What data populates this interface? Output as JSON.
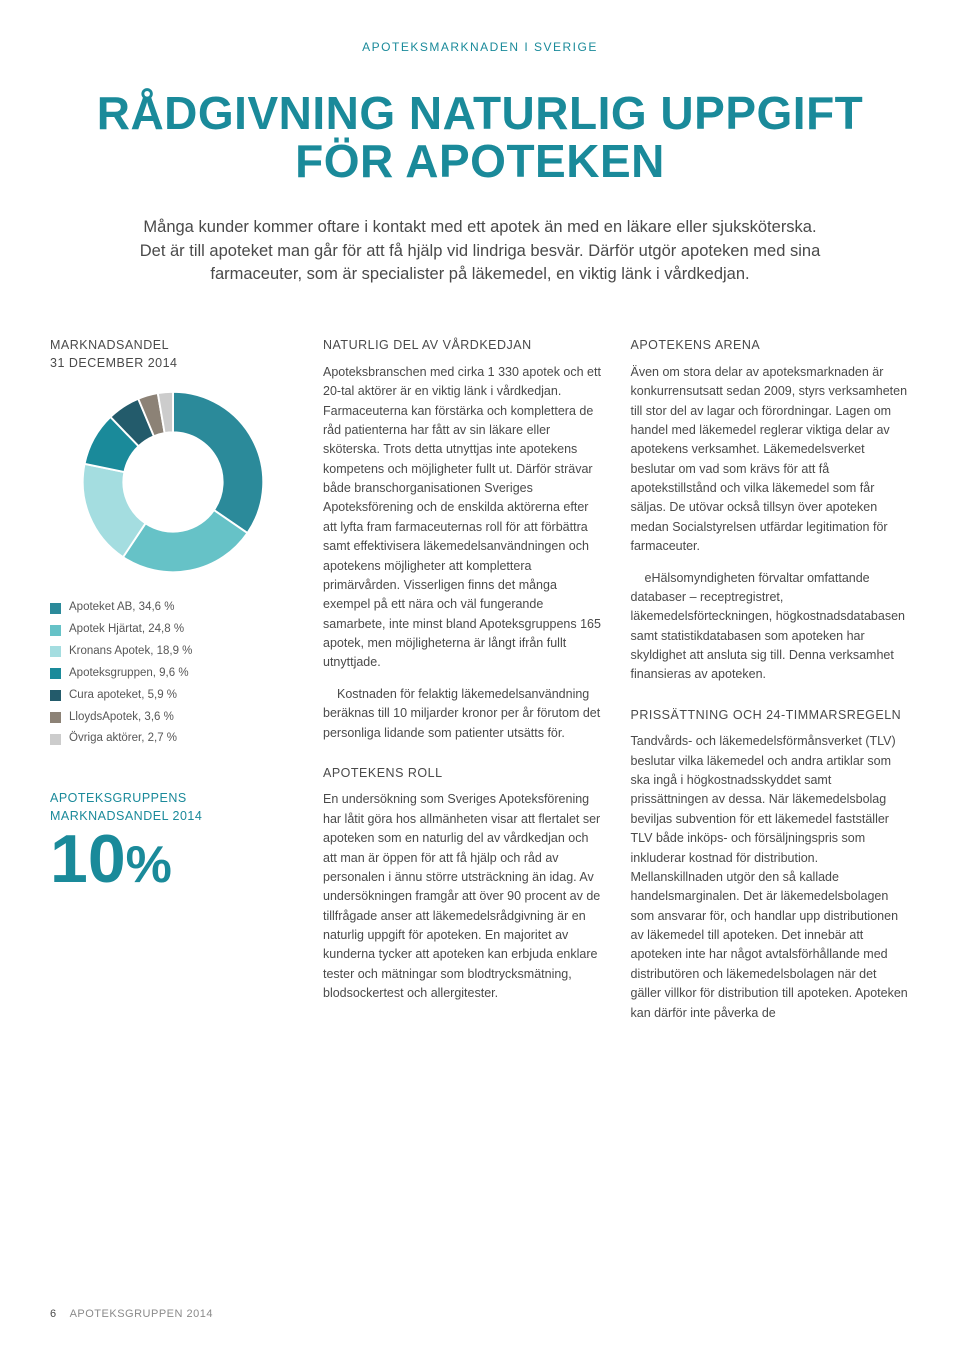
{
  "header_label": "APOTEKSMARKNADEN I SVERIGE",
  "main_title": "RÅDGIVNING NATURLIG UPPGIFT FÖR APOTEKEN",
  "intro": "Många kunder kommer oftare i kontakt med ett apotek än med en läkare eller sjuksköterska. Det är till apoteket man går för att få hjälp vid lindriga besvär. Därför utgör apoteken med sina farmaceuter, som är specialister på läkemedel, en viktig länk i vårdkedjan.",
  "chart": {
    "title": "MARKNADSANDEL\n31 DECEMBER 2014",
    "type": "donut",
    "inner_ratio": 0.55,
    "background_color": "#ffffff",
    "slices": [
      {
        "label": "Apoteket AB, 34,6 %",
        "value": 34.6,
        "color": "#2b8a9a"
      },
      {
        "label": "Apotek Hjärtat, 24,8 %",
        "value": 24.8,
        "color": "#66c2c7"
      },
      {
        "label": "Kronans Apotek, 18,9 %",
        "value": 18.9,
        "color": "#a4dde0"
      },
      {
        "label": "Apoteksgruppen, 9,6 %",
        "value": 9.6,
        "color": "#1a8a9a"
      },
      {
        "label": "Cura apoteket, 5,9 %",
        "value": 5.9,
        "color": "#235b6b"
      },
      {
        "label": "LloydsApotek, 3,6 %",
        "value": 3.6,
        "color": "#8c8276"
      },
      {
        "label": "Övriga aktörer, 2,7 %",
        "value": 2.7,
        "color": "#cccccc"
      }
    ]
  },
  "stat": {
    "label": "APOTEKSGRUPPENS MARKNADSANDEL 2014",
    "value": "10",
    "unit": "%",
    "color": "#1a8a9a",
    "value_fontsize": 68
  },
  "col2": {
    "h1": "NATURLIG DEL AV VÅRDKEDJAN",
    "p1": "Apoteksbranschen med cirka 1 330 apotek och ett 20-tal aktörer är en viktig länk i vårdkedjan. Farmaceuterna kan förstärka och komplettera de råd patienterna har fått av sin läkare eller sköterska. Trots detta utnyttjas inte apotekens kompetens och möjligheter fullt ut. Därför strävar både branschorganisationen Sveriges Apoteksförening och de enskilda aktörerna efter att lyfta fram farmaceuternas roll för att förbättra samt effektivisera läkemedelsanvändningen och apotekens möjligheter att komplettera primärvården. Visserligen finns det många exempel på ett nära och väl fungerande samarbete, inte minst bland Apoteksgruppens 165 apotek, men möjligheterna är långt ifrån fullt utnyttjade.",
    "p1b": "Kostnaden för felaktig läkemedelsanvändning beräknas till 10 miljarder kronor per år förutom det personliga lidande som patienter utsätts för.",
    "h2": "APOTEKENS ROLL",
    "p2": "En undersökning som Sveriges Apoteksförening har låtit göra hos allmänheten visar att flertalet ser apoteken som en naturlig del av vårdkedjan och att man är öppen för att få hjälp och råd av personalen i ännu större utsträckning än idag. Av undersökningen framgår att över 90 procent av de tillfrågade anser att läkemedelsrådgivning är en naturlig uppgift för apoteken. En majoritet av kunderna tycker att apoteken kan erbjuda enklare tester och mätningar som blodtrycksmätning, blodsockertest och allergitester."
  },
  "col3": {
    "h1": "APOTEKENS ARENA",
    "p1": "Även om stora delar av apoteksmarknaden är konkurrensutsatt sedan 2009, styrs verksamheten till stor del av lagar och förordningar. Lagen om handel med läkemedel reglerar viktiga delar av apotekens verksamhet. Läkemedelsverket beslutar om vad som krävs för att få apotekstillstånd och vilka läkemedel som får säljas. De utövar också tillsyn över apoteken medan Socialstyrelsen utfärdar legitimation för farmaceuter.",
    "p1b": "eHälsomyndigheten förvaltar omfattande databaser – receptregistret, läkemedelsförteckningen, högkostnadsdatabasen samt statistikdatabasen som apoteken har skyldighet att ansluta sig till. Denna verksamhet finansieras av apoteken.",
    "h2": "PRISSÄTTNING OCH 24-TIMMARS­REGELN",
    "p2": "Tandvårds- och läkemedelsförmånsverket (TLV) beslutar vilka läkemedel och andra artiklar som ska ingå i högkostnadsskyddet samt prissättningen av dessa. När läkemedelsbolag beviljas subvention för ett läkemedel fastställer TLV både inköps- och försäljningspris som inkluderar kostnad för distribution. Mellanskillnaden utgör den så kallade handelsmarginalen. Det är läkemedelsbolagen som ansvarar för, och handlar upp distributionen av läkemedel till apoteken. Det innebär att apoteken inte har något avtalsförhållande med distributören och läkemedelsbolagen när det gäller villkor för distribution till apoteken. Apoteken kan därför inte påverka de"
  },
  "footer": {
    "page": "6",
    "text": "APOTEKSGRUPPEN 2014"
  }
}
